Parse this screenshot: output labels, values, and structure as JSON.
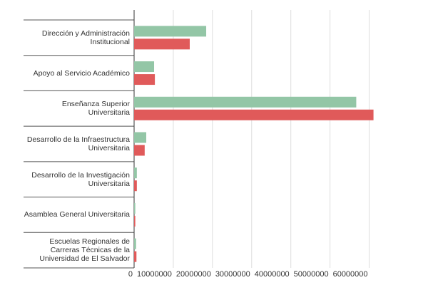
{
  "chart_data": {
    "type": "hbar",
    "categories": [
      "Dirección y Administración Institucional",
      "Apoyo al Servicio Académico",
      "Enseñanza Superior Universitaria",
      "Desarrollo de la Infraestructura Universitaria",
      "Desarrollo de la Investigación Universitaria",
      "Asamblea General Universitaria",
      "Escuelas Regionales de Carreras Técnicas de la Universidad de El Salvador"
    ],
    "series": [
      {
        "color": "#93c6a6",
        "values": [
          18400000,
          5100000,
          56700000,
          3100000,
          700000,
          300000,
          500000
        ]
      },
      {
        "color": "#e05a5a",
        "values": [
          14200000,
          5300000,
          61100000,
          2700000,
          700000,
          300000,
          600000
        ]
      }
    ],
    "xlim": [
      0,
      65000000
    ],
    "xticks": [
      0,
      10000000,
      20000000,
      30000000,
      40000000,
      50000000,
      60000000
    ],
    "grid": true
  }
}
